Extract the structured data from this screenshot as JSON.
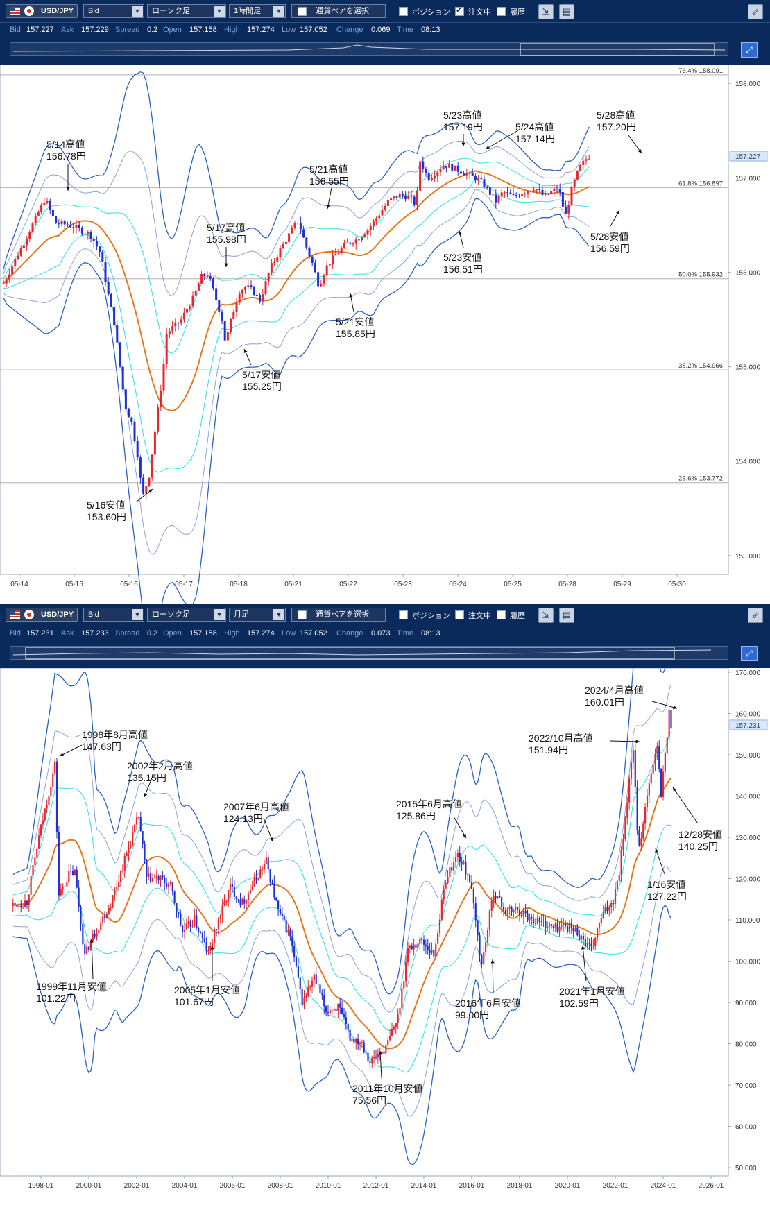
{
  "panels": [
    {
      "toolbar": {
        "pair": "USD/JPY",
        "price_type": "Bid",
        "chart_type": "ローソク足",
        "timeframe": "1時間足",
        "select_pair_label": "通貨ペアを選択",
        "position_label": "ポジション",
        "order_label": "注文中",
        "history_label": "履歴",
        "position_checked": false,
        "order_checked": true,
        "history_checked": false
      },
      "quote": {
        "bid_label": "Bid",
        "bid": "157.227",
        "ask_label": "Ask",
        "ask": "157.229",
        "spread_label": "Spread",
        "spread": "0.2",
        "open_label": "Open",
        "open": "157.158",
        "high_label": "High",
        "high": "157.274",
        "low_label": "Low",
        "low": "157.052",
        "change_label": "Change",
        "change": "0.069",
        "time_label": "Time",
        "time": "08:13"
      },
      "current_price_tag": "157.227"
    },
    {
      "toolbar": {
        "pair": "USD/JPY",
        "price_type": "Bid",
        "chart_type": "ローソク足",
        "timeframe": "月足",
        "select_pair_label": "通貨ペアを選択",
        "position_label": "ポジション",
        "order_label": "注文中",
        "history_label": "履歴",
        "position_checked": false,
        "order_checked": false,
        "history_checked": false
      },
      "quote": {
        "bid_label": "Bid",
        "bid": "157.231",
        "ask_label": "Ask",
        "ask": "157.233",
        "spread_label": "Spread",
        "spread": "0.2",
        "open_label": "Open",
        "open": "157.158",
        "high_label": "High",
        "high": "157.274",
        "low_label": "Low",
        "low": "157.052",
        "change_label": "Change",
        "change": "0.073",
        "time_label": "Time",
        "time": "08:13"
      },
      "current_price_tag": "157.231"
    }
  ],
  "colors": {
    "up_candle": "#e8262d",
    "down_candle": "#1f2fd6",
    "ma_center": "#e8761c",
    "band1": "#2ee0e8",
    "band2": "#8aa3d8",
    "band3": "#2a63c0"
  },
  "chart_data": [
    {
      "type": "candlestick",
      "timeframe": "1時間足",
      "x_ticks": [
        "05-14",
        "05-15",
        "05-16",
        "05-17",
        "05-18",
        "05-21",
        "05-22",
        "05-23",
        "05-24",
        "05-25",
        "05-28",
        "05-29",
        "05-30"
      ],
      "y_ticks": [
        "158.000",
        "157.000",
        "156.000",
        "155.000",
        "154.000",
        "153.000"
      ],
      "ylim": [
        152.8,
        158.2
      ],
      "price_path": [
        [
          0,
          155.88
        ],
        [
          25,
          156.25
        ],
        [
          45,
          156.55
        ],
        [
          60,
          156.78
        ],
        [
          75,
          156.52
        ],
        [
          95,
          156.5
        ],
        [
          110,
          156.45
        ],
        [
          125,
          156.4
        ],
        [
          140,
          156.2
        ],
        [
          150,
          155.8
        ],
        [
          160,
          155.45
        ],
        [
          168,
          155.0
        ],
        [
          175,
          154.6
        ],
        [
          185,
          154.4
        ],
        [
          195,
          154.0
        ],
        [
          200,
          153.6
        ],
        [
          210,
          153.85
        ],
        [
          220,
          154.4
        ],
        [
          230,
          154.95
        ],
        [
          235,
          155.35
        ],
        [
          245,
          155.42
        ],
        [
          255,
          155.48
        ],
        [
          265,
          155.62
        ],
        [
          275,
          155.75
        ],
        [
          285,
          155.95
        ],
        [
          295,
          155.98
        ],
        [
          305,
          155.75
        ],
        [
          315,
          155.5
        ],
        [
          320,
          155.25
        ],
        [
          330,
          155.55
        ],
        [
          340,
          155.8
        ],
        [
          350,
          155.85
        ],
        [
          360,
          155.8
        ],
        [
          370,
          155.7
        ],
        [
          385,
          156.05
        ],
        [
          400,
          156.25
        ],
        [
          412,
          156.4
        ],
        [
          425,
          156.55
        ],
        [
          435,
          156.3
        ],
        [
          445,
          156.1
        ],
        [
          455,
          155.85
        ],
        [
          465,
          156.05
        ],
        [
          480,
          156.2
        ],
        [
          495,
          156.3
        ],
        [
          510,
          156.35
        ],
        [
          525,
          156.45
        ],
        [
          540,
          156.6
        ],
        [
          555,
          156.75
        ],
        [
          570,
          156.82
        ],
        [
          585,
          156.8
        ],
        [
          595,
          156.7
        ],
        [
          600,
          157.19
        ],
        [
          612,
          157.0
        ],
        [
          622,
          157.05
        ],
        [
          635,
          157.14
        ],
        [
          650,
          157.1
        ],
        [
          665,
          157.05
        ],
        [
          680,
          157.0
        ],
        [
          690,
          156.95
        ],
        [
          700,
          156.85
        ],
        [
          710,
          156.75
        ],
        [
          720,
          156.85
        ],
        [
          735,
          156.8
        ],
        [
          750,
          156.85
        ],
        [
          765,
          156.9
        ],
        [
          780,
          156.8
        ],
        [
          790,
          156.85
        ],
        [
          800,
          156.9
        ],
        [
          810,
          156.59
        ],
        [
          820,
          156.9
        ],
        [
          830,
          157.1
        ],
        [
          840,
          157.2
        ],
        [
          845,
          157.23
        ]
      ],
      "fib_levels": [
        {
          "label": "76.4%",
          "value": "158.091"
        },
        {
          "label": "61.8%",
          "value": "156.897"
        },
        {
          "label": "50.0%",
          "value": "155.932"
        },
        {
          "label": "38.2%",
          "value": "154.966"
        },
        {
          "label": "23.6%",
          "value": "153.772"
        }
      ],
      "annotations": [
        {
          "line1": "5/14高値",
          "line2": "156.78円"
        },
        {
          "line1": "5/16安値",
          "line2": "153.60円"
        },
        {
          "line1": "5/17高値",
          "line2": "155.98円"
        },
        {
          "line1": "5/17安値",
          "line2": "155.25円"
        },
        {
          "line1": "5/21高値",
          "line2": "156.55円"
        },
        {
          "line1": "5/21安値",
          "line2": "155.85円"
        },
        {
          "line1": "5/23高値",
          "line2": "157.19円"
        },
        {
          "line1": "5/23安値",
          "line2": "156.51円"
        },
        {
          "line1": "5/24高値",
          "line2": "157.14円"
        },
        {
          "line1": "5/28高値",
          "line2": "157.20円"
        },
        {
          "line1": "5/28安値",
          "line2": "156.59円"
        }
      ]
    },
    {
      "type": "candlestick",
      "timeframe": "月足",
      "x_ticks": [
        "1998-01",
        "2000-01",
        "2002-01",
        "2004-01",
        "2006-01",
        "2008-01",
        "2010-01",
        "2012-01",
        "2014-01",
        "2016-01",
        "2018-01",
        "2020-01",
        "2022-01",
        "2024-01",
        "2026-01"
      ],
      "y_ticks": [
        "170.000",
        "160.000",
        "150.000",
        "140.000",
        "130.000",
        "120.000",
        "110.000",
        "100.000",
        "90.000",
        "80.000",
        "70.000",
        "60.000",
        "50.000"
      ],
      "ylim": [
        48,
        171
      ],
      "price_path": [
        [
          "1996-11",
          113.5
        ],
        [
          "1997-06",
          114.5
        ],
        [
          "1997-12",
          130.0
        ],
        [
          "1998-08",
          147.63
        ],
        [
          "1998-10",
          116.0
        ],
        [
          "1999-03",
          121.0
        ],
        [
          "1999-06",
          121.5
        ],
        [
          "1999-11",
          101.22
        ],
        [
          "2000-03",
          106.0
        ],
        [
          "2000-12",
          114.0
        ],
        [
          "2001-06",
          123.0
        ],
        [
          "2002-02",
          135.15
        ],
        [
          "2002-06",
          120.0
        ],
        [
          "2002-12",
          120.0
        ],
        [
          "2003-06",
          118.0
        ],
        [
          "2003-12",
          107.0
        ],
        [
          "2004-06",
          110.0
        ],
        [
          "2005-01",
          101.67
        ],
        [
          "2005-06",
          110.0
        ],
        [
          "2005-12",
          118.0
        ],
        [
          "2006-06",
          114.0
        ],
        [
          "2007-02",
          121.0
        ],
        [
          "2007-06",
          124.13
        ],
        [
          "2007-12",
          112.0
        ],
        [
          "2008-06",
          106.0
        ],
        [
          "2008-12",
          90.0
        ],
        [
          "2009-06",
          96.0
        ],
        [
          "2009-12",
          88.0
        ],
        [
          "2010-06",
          89.0
        ],
        [
          "2010-12",
          81.5
        ],
        [
          "2011-06",
          80.5
        ],
        [
          "2011-10",
          75.56
        ],
        [
          "2012-06",
          79.0
        ],
        [
          "2012-12",
          86.5
        ],
        [
          "2013-05",
          103.0
        ],
        [
          "2013-12",
          105.0
        ],
        [
          "2014-06",
          101.5
        ],
        [
          "2014-12",
          120.0
        ],
        [
          "2015-06",
          125.86
        ],
        [
          "2015-12",
          120.0
        ],
        [
          "2016-06",
          99.0
        ],
        [
          "2016-12",
          117.0
        ],
        [
          "2017-06",
          112.0
        ],
        [
          "2017-12",
          112.5
        ],
        [
          "2018-06",
          110.5
        ],
        [
          "2018-12",
          109.5
        ],
        [
          "2019-06",
          108.0
        ],
        [
          "2019-12",
          108.7
        ],
        [
          "2020-06",
          107.0
        ],
        [
          "2021-01",
          102.59
        ],
        [
          "2021-06",
          110.5
        ],
        [
          "2021-12",
          115.0
        ],
        [
          "2022-03",
          122.0
        ],
        [
          "2022-10",
          151.94
        ],
        [
          "2022-12",
          131.0
        ],
        [
          "2023-01",
          127.22
        ],
        [
          "2023-06",
          144.0
        ],
        [
          "2023-10",
          151.5
        ],
        [
          "2023-12",
          140.25
        ],
        [
          "2024-04",
          160.01
        ],
        [
          "2024-05",
          157.23
        ]
      ],
      "annotations": [
        {
          "line1": "1998年8月高値",
          "line2": "147.63円"
        },
        {
          "line1": "1999年11月安値",
          "line2": "101.22円"
        },
        {
          "line1": "2002年2月高値",
          "line2": "135.15円"
        },
        {
          "line1": "2005年1月安値",
          "line2": "101.67円"
        },
        {
          "line1": "2007年6月高値",
          "line2": "124.13円"
        },
        {
          "line1": "2011年10月安値",
          "line2": "75.56円"
        },
        {
          "line1": "2015年6月高値",
          "line2": "125.86円"
        },
        {
          "line1": "2016年6月安値",
          "line2": "99.00円"
        },
        {
          "line1": "2021年1月安値",
          "line2": "102.59円"
        },
        {
          "line1": "2022/10月高値",
          "line2": "151.94円"
        },
        {
          "line1": "2024/4月高値",
          "line2": "160.01円"
        },
        {
          "line1": "1/16安値",
          "line2": "127.22円"
        },
        {
          "line1": "12/28安値",
          "line2": "140.25円"
        }
      ]
    }
  ]
}
